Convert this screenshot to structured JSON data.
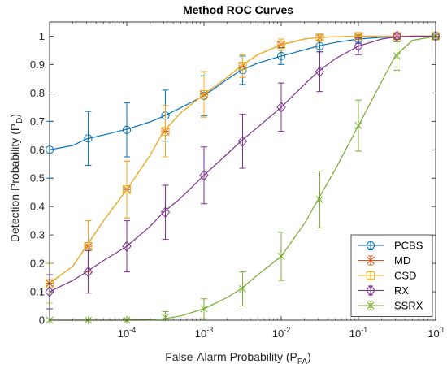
{
  "chart_data": {
    "type": "line",
    "title": "Method ROC Curves",
    "xlabel": {
      "main": "False-Alarm Probability (P",
      "sub": "FA",
      "close": ")"
    },
    "ylabel": {
      "main": "Detection Probability (P",
      "sub": "D",
      "close": ")"
    },
    "x_scale": "log",
    "xlim": [
      1e-05,
      1
    ],
    "ylim": [
      0,
      1.05
    ],
    "grid": false,
    "legend_position": "bottom-right",
    "x_ticks": [
      {
        "value": 0.0001,
        "base": "10",
        "exp": "-4"
      },
      {
        "value": 0.001,
        "base": "10",
        "exp": "-3"
      },
      {
        "value": 0.01,
        "base": "10",
        "exp": "-2"
      },
      {
        "value": 0.1,
        "base": "10",
        "exp": "-1"
      },
      {
        "value": 1,
        "base": "10",
        "exp": "0"
      }
    ],
    "y_ticks": [
      {
        "value": 0,
        "label": "0"
      },
      {
        "value": 0.1,
        "label": "0.1"
      },
      {
        "value": 0.2,
        "label": "0.2"
      },
      {
        "value": 0.3,
        "label": "0.3"
      },
      {
        "value": 0.4,
        "label": "0.4"
      },
      {
        "value": 0.5,
        "label": "0.5"
      },
      {
        "value": 0.6,
        "label": "0.6"
      },
      {
        "value": 0.7,
        "label": "0.7"
      },
      {
        "value": 0.8,
        "label": "0.8"
      },
      {
        "value": 0.9,
        "label": "0.9"
      },
      {
        "value": 1,
        "label": "1"
      }
    ],
    "series": [
      {
        "name": "PCBS",
        "color": "#0072BD",
        "marker": "circle",
        "curve": {
          "x": [
            1e-05,
            2e-05,
            3e-05,
            5e-05,
            0.0001,
            0.0002,
            0.0003,
            0.0005,
            0.001,
            0.002,
            0.003,
            0.005,
            0.01,
            0.02,
            0.03,
            0.05,
            0.1,
            0.2,
            0.3,
            0.5,
            1
          ],
          "y": [
            0.6,
            0.615,
            0.638,
            0.652,
            0.672,
            0.698,
            0.718,
            0.748,
            0.79,
            0.848,
            0.88,
            0.905,
            0.93,
            0.952,
            0.965,
            0.978,
            0.99,
            0.996,
            0.998,
            1.0,
            1.0
          ]
        },
        "markers": {
          "x": [
            1e-05,
            3.16e-05,
            0.0001,
            0.000316,
            0.001,
            0.00316,
            0.01,
            0.0316,
            0.1,
            0.316,
            1
          ],
          "y": [
            0.6,
            0.64,
            0.67,
            0.72,
            0.79,
            0.88,
            0.93,
            0.965,
            0.99,
            1.0,
            1.0
          ],
          "err": [
            0.1,
            0.095,
            0.095,
            0.09,
            0.07,
            0.05,
            0.03,
            0.02,
            0.015,
            0.01,
            0
          ]
        }
      },
      {
        "name": "MD",
        "color": "#D95319",
        "marker": "star",
        "curve": {
          "x": [
            1e-05,
            2e-05,
            3e-05,
            5e-05,
            0.0001,
            0.0002,
            0.0003,
            0.0005,
            0.001,
            0.002,
            0.003,
            0.005,
            0.01,
            0.02,
            0.03,
            0.05,
            0.1,
            0.2,
            0.3,
            0.5,
            1
          ],
          "y": [
            0.13,
            0.19,
            0.26,
            0.35,
            0.46,
            0.58,
            0.665,
            0.73,
            0.795,
            0.855,
            0.895,
            0.935,
            0.97,
            0.99,
            0.995,
            0.998,
            1.0,
            1.0,
            1.0,
            1.0,
            1.0
          ]
        },
        "markers": {
          "x": [
            1e-05,
            3.16e-05,
            0.0001,
            0.000316,
            0.001,
            0.00316,
            0.01,
            0.0316,
            0.1,
            0.316,
            1
          ],
          "y": [
            0.13,
            0.26,
            0.46,
            0.665,
            0.795,
            0.895,
            0.97,
            0.995,
            1.0,
            1.0,
            1.0
          ],
          "err": [
            0.07,
            0.09,
            0.1,
            0.09,
            0.08,
            0.04,
            0.02,
            0.01,
            0.005,
            0,
            0
          ]
        }
      },
      {
        "name": "CSD",
        "color": "#EDB120",
        "marker": "square",
        "curve": {
          "x": [
            1e-05,
            2e-05,
            3e-05,
            5e-05,
            0.0001,
            0.0002,
            0.0003,
            0.0005,
            0.001,
            0.002,
            0.003,
            0.005,
            0.01,
            0.02,
            0.03,
            0.05,
            0.1,
            0.2,
            0.3,
            0.5,
            1
          ],
          "y": [
            0.13,
            0.19,
            0.26,
            0.35,
            0.46,
            0.58,
            0.665,
            0.73,
            0.795,
            0.855,
            0.895,
            0.935,
            0.97,
            0.99,
            0.995,
            0.998,
            1.0,
            1.0,
            1.0,
            1.0,
            1.0
          ]
        },
        "markers": {
          "x": [
            1e-05,
            3.16e-05,
            0.0001,
            0.000316,
            0.001,
            0.00316,
            0.01,
            0.0316,
            0.1,
            0.316,
            1
          ],
          "y": [
            0.13,
            0.26,
            0.46,
            0.665,
            0.795,
            0.895,
            0.97,
            0.995,
            1.0,
            1.0,
            1.0
          ],
          "err": [
            0.07,
            0.09,
            0.1,
            0.09,
            0.08,
            0.04,
            0.02,
            0.01,
            0.005,
            0,
            0
          ]
        }
      },
      {
        "name": "RX",
        "color": "#7E2F8E",
        "marker": "diamond",
        "curve": {
          "x": [
            1e-05,
            2e-05,
            3e-05,
            5e-05,
            0.0001,
            0.0002,
            0.0003,
            0.0005,
            0.001,
            0.002,
            0.003,
            0.005,
            0.01,
            0.02,
            0.03,
            0.05,
            0.1,
            0.2,
            0.3,
            0.5,
            1
          ],
          "y": [
            0.1,
            0.14,
            0.17,
            0.21,
            0.26,
            0.33,
            0.38,
            0.43,
            0.51,
            0.585,
            0.63,
            0.68,
            0.75,
            0.83,
            0.875,
            0.92,
            0.965,
            0.99,
            0.997,
            1.0,
            1.0
          ]
        },
        "markers": {
          "x": [
            1e-05,
            3.16e-05,
            0.0001,
            0.000316,
            0.001,
            0.00316,
            0.01,
            0.0316,
            0.1,
            0.316,
            1
          ],
          "y": [
            0.1,
            0.17,
            0.26,
            0.38,
            0.51,
            0.63,
            0.75,
            0.875,
            0.965,
            1.0,
            1.0
          ],
          "err": [
            0.06,
            0.075,
            0.09,
            0.095,
            0.1,
            0.095,
            0.085,
            0.07,
            0.03,
            0.01,
            0
          ]
        }
      },
      {
        "name": "SSRX",
        "color": "#77AC30",
        "marker": "asterisk",
        "curve": {
          "x": [
            1e-05,
            3e-05,
            0.0001,
            0.0003,
            0.0005,
            0.001,
            0.002,
            0.003,
            0.005,
            0.01,
            0.02,
            0.03,
            0.05,
            0.1,
            0.2,
            0.3,
            0.5,
            1
          ],
          "y": [
            0.0,
            0.0,
            0.0,
            0.005,
            0.015,
            0.04,
            0.08,
            0.11,
            0.16,
            0.225,
            0.34,
            0.425,
            0.53,
            0.685,
            0.84,
            0.93,
            0.985,
            1.0
          ]
        },
        "markers": {
          "x": [
            1e-05,
            3.16e-05,
            0.0001,
            0.000316,
            0.001,
            0.00316,
            0.01,
            0.0316,
            0.1,
            0.316,
            1
          ],
          "y": [
            0.0,
            0.0,
            0.0,
            0.01,
            0.04,
            0.11,
            0.225,
            0.425,
            0.685,
            0.93,
            1.0
          ],
          "err": [
            0,
            0,
            0.005,
            0.02,
            0.035,
            0.06,
            0.085,
            0.1,
            0.09,
            0.05,
            0
          ]
        }
      }
    ]
  }
}
